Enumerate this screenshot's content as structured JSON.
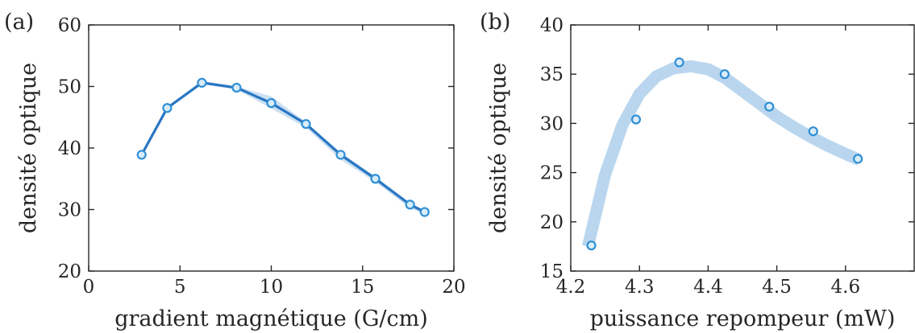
{
  "colors": {
    "line": "#2876c2",
    "band": "#b9d6ee",
    "marker": "#2f8fd6",
    "marker_fill": "#d8ecf9",
    "axis": "#262626"
  },
  "chart_data": [
    {
      "type": "line",
      "panel_label": "(a)",
      "title": "",
      "xlabel": "gradient magnétique (G/cm)",
      "ylabel": "densité optique",
      "xlim": [
        0,
        20
      ],
      "ylim": [
        20,
        60
      ],
      "xticks": [
        0,
        5,
        10,
        15,
        20
      ],
      "yticks": [
        20,
        30,
        40,
        50,
        60
      ],
      "xtick_labels": [
        "0",
        "5",
        "10",
        "15",
        "20"
      ],
      "ytick_labels": [
        "20",
        "30",
        "40",
        "50",
        "60"
      ],
      "grid": false,
      "series": [
        {
          "style": "line-with-markers",
          "x": [
            2.9,
            4.3,
            6.2,
            8.1,
            10.0,
            11.9,
            13.8,
            15.7,
            17.6,
            18.4
          ],
          "y": [
            38.9,
            46.5,
            50.6,
            49.8,
            47.3,
            43.9,
            38.9,
            35.0,
            30.8,
            29.6
          ],
          "band_low": [
            38.9,
            46.4,
            50.4,
            49.5,
            46.4,
            43.3,
            38.1,
            34.5,
            30.2,
            29.3
          ],
          "band_high": [
            38.9,
            46.6,
            50.9,
            50.0,
            48.4,
            44.2,
            39.3,
            35.4,
            31.1,
            29.9
          ]
        }
      ]
    },
    {
      "type": "scatter",
      "panel_label": "(b)",
      "title": "",
      "xlabel": "puissance repompeur (mW)",
      "ylabel": "densité optique",
      "xlim": [
        4.2,
        4.7
      ],
      "ylim": [
        15,
        40
      ],
      "xticks": [
        4.2,
        4.3,
        4.4,
        4.5,
        4.6
      ],
      "yticks": [
        15,
        20,
        25,
        30,
        35,
        40
      ],
      "xtick_labels": [
        "4.2",
        "4.3",
        "4.4",
        "4.5",
        "4.6"
      ],
      "ytick_labels": [
        "15",
        "20",
        "25",
        "30",
        "35",
        "40"
      ],
      "grid": false,
      "series": [
        {
          "style": "markers",
          "x": [
            4.23,
            4.295,
            4.358,
            4.424,
            4.489,
            4.553,
            4.618
          ],
          "y": [
            17.6,
            30.4,
            36.2,
            35.0,
            31.7,
            29.2,
            26.4
          ]
        },
        {
          "style": "fit-band",
          "x": [
            4.225,
            4.25,
            4.275,
            4.3,
            4.325,
            4.35,
            4.375,
            4.4,
            4.425,
            4.45,
            4.475,
            4.5,
            4.525,
            4.55,
            4.575,
            4.6,
            4.62
          ],
          "y": [
            17.5,
            24.8,
            29.8,
            33.0,
            34.8,
            35.6,
            35.8,
            35.5,
            34.6,
            33.3,
            32.0,
            30.7,
            29.6,
            28.6,
            27.7,
            26.9,
            26.3
          ]
        }
      ]
    }
  ]
}
